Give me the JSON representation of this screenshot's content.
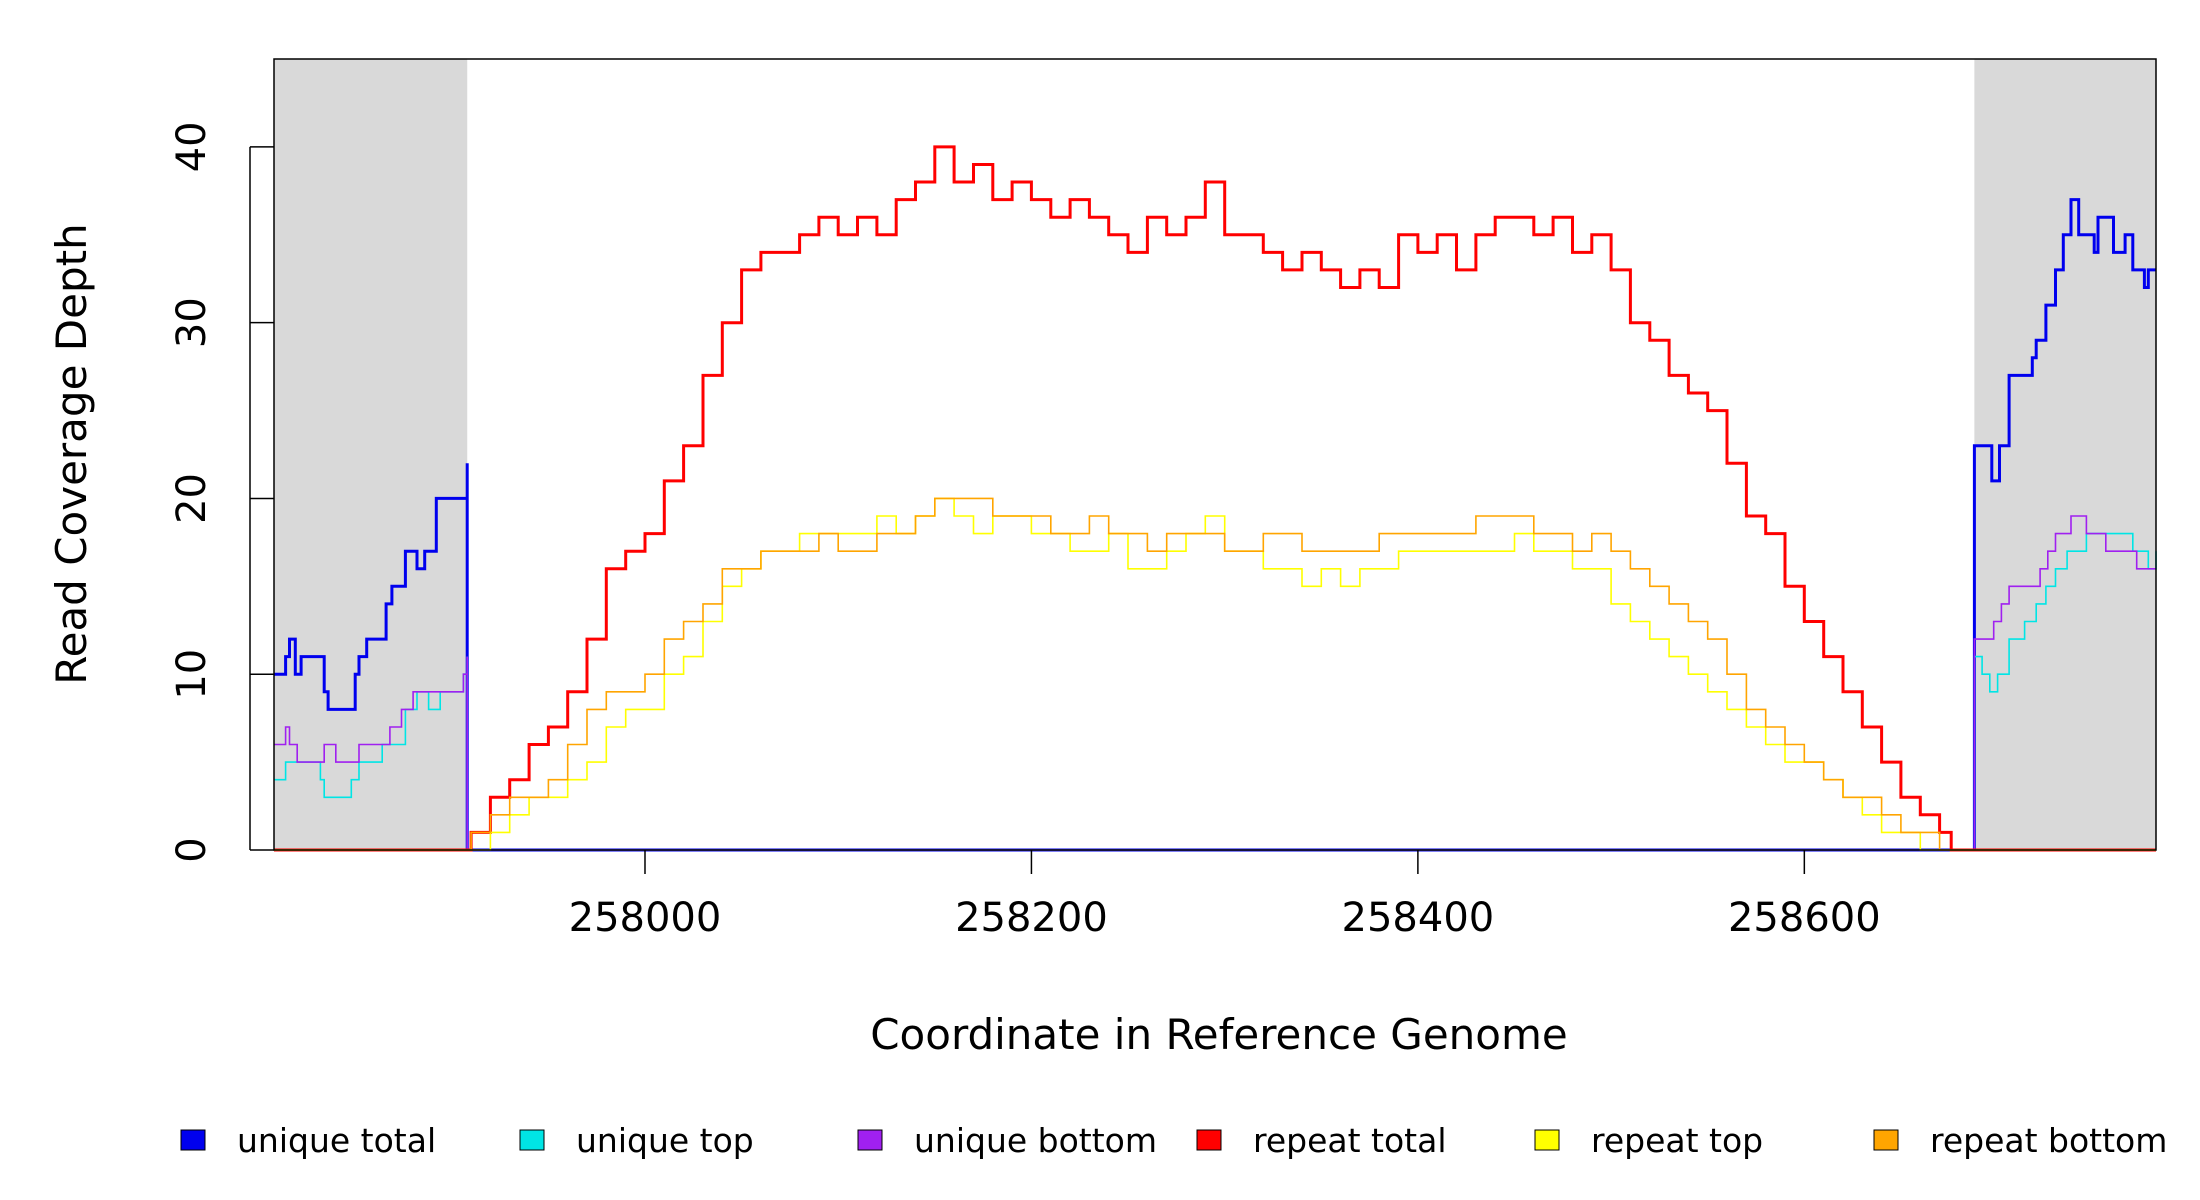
{
  "chart_data": {
    "type": "line",
    "title": "",
    "xlabel": "Coordinate in Reference Genome",
    "ylabel": "Read Coverage Depth",
    "xlim": [
      257808,
      258782
    ],
    "ylim": [
      0,
      45
    ],
    "x_ticks": [
      258000,
      258200,
      258400,
      258600
    ],
    "x_tick_labels": [
      "258000",
      "258200",
      "258400",
      "258600"
    ],
    "y_ticks": [
      0,
      10,
      20,
      30,
      40
    ],
    "y_tick_labels": [
      "0",
      "10",
      "20",
      "30",
      "40"
    ],
    "grid": false,
    "shaded_regions": [
      {
        "x0": 257808,
        "x1": 257908,
        "color": "#d9d9d9"
      },
      {
        "x0": 258688,
        "x1": 258782,
        "color": "#d9d9d9"
      }
    ],
    "legend_position": "bottom",
    "series": [
      {
        "name": "unique total",
        "color": "#0000ee",
        "width": 3,
        "x": [
          257808,
          257814,
          257816,
          257819,
          257822,
          257832,
          257834,
          257836,
          257845,
          257850,
          257852,
          257856,
          257863,
          257866,
          257869,
          257876,
          257882,
          257883,
          257886,
          257892,
          257897,
          257906,
          257908,
          257908,
          257909,
          258688,
          258688,
          258692,
          258697,
          258701,
          258706,
          258718,
          258720,
          258725,
          258730,
          258734,
          258738,
          258742,
          258746,
          258750,
          258752,
          258760,
          258766,
          258770,
          258774,
          258776,
          258778,
          258782
        ],
        "y": [
          10,
          11,
          12,
          10,
          11,
          11,
          9,
          8,
          8,
          10,
          11,
          12,
          12,
          14,
          15,
          17,
          16,
          16,
          17,
          20,
          20,
          20,
          22,
          0,
          0,
          0,
          23,
          23,
          21,
          23,
          27,
          28,
          29,
          31,
          33,
          35,
          37,
          35,
          35,
          34,
          36,
          34,
          35,
          33,
          33,
          32,
          33,
          33
        ]
      },
      {
        "name": "unique top",
        "color": "#00e5e5",
        "width": 1.6,
        "x": [
          257808,
          257814,
          257820,
          257832,
          257834,
          257845,
          257848,
          257852,
          257864,
          257876,
          257882,
          257888,
          257894,
          257906,
          257908,
          257908,
          257909,
          258688,
          258688,
          258692,
          258696,
          258700,
          258706,
          258714,
          258720,
          258725,
          258730,
          258736,
          258746,
          258756,
          258764,
          258770,
          258778,
          258782
        ],
        "y": [
          4,
          5,
          5,
          4,
          3,
          3,
          4,
          5,
          6,
          8,
          9,
          8,
          9,
          10,
          11,
          0,
          0,
          0,
          11,
          10,
          9,
          10,
          12,
          13,
          14,
          15,
          16,
          17,
          18,
          18,
          18,
          17,
          16,
          17
        ]
      },
      {
        "name": "unique bottom",
        "color": "#a020f0",
        "width": 1.6,
        "x": [
          257808,
          257814,
          257816,
          257820,
          257834,
          257840,
          257848,
          257852,
          257864,
          257868,
          257874,
          257880,
          257890,
          257906,
          257908,
          257908,
          257909,
          258688,
          258688,
          258694,
          258698,
          258702,
          258706,
          258718,
          258722,
          258726,
          258730,
          258738,
          258746,
          258756,
          258764,
          258772,
          258782
        ],
        "y": [
          6,
          7,
          6,
          5,
          6,
          5,
          5,
          6,
          6,
          7,
          8,
          9,
          9,
          10,
          11,
          0,
          0,
          0,
          12,
          12,
          13,
          14,
          15,
          15,
          16,
          17,
          18,
          19,
          18,
          17,
          17,
          16,
          16
        ]
      },
      {
        "name": "repeat total",
        "color": "#ff0000",
        "width": 3,
        "x": [
          257808,
          257908,
          257910,
          257920,
          257930,
          257940,
          257950,
          257960,
          257970,
          257980,
          257990,
          258000,
          258010,
          258020,
          258030,
          258040,
          258050,
          258060,
          258070,
          258080,
          258090,
          258100,
          258110,
          258120,
          258130,
          258140,
          258150,
          258160,
          258170,
          258180,
          258190,
          258200,
          258210,
          258220,
          258230,
          258240,
          258250,
          258260,
          258270,
          258280,
          258290,
          258300,
          258310,
          258320,
          258330,
          258340,
          258350,
          258360,
          258370,
          258380,
          258390,
          258400,
          258410,
          258420,
          258430,
          258440,
          258450,
          258460,
          258470,
          258480,
          258490,
          258500,
          258510,
          258520,
          258530,
          258540,
          258550,
          258560,
          258570,
          258580,
          258590,
          258600,
          258610,
          258620,
          258630,
          258640,
          258650,
          258660,
          258670,
          258676,
          258688,
          258782
        ],
        "y": [
          0,
          0,
          1,
          3,
          4,
          6,
          7,
          9,
          12,
          16,
          17,
          18,
          21,
          23,
          27,
          30,
          33,
          34,
          34,
          35,
          36,
          35,
          36,
          35,
          37,
          38,
          40,
          38,
          39,
          37,
          38,
          37,
          36,
          37,
          36,
          35,
          34,
          36,
          35,
          36,
          38,
          35,
          35,
          34,
          33,
          34,
          33,
          32,
          33,
          32,
          35,
          34,
          35,
          33,
          35,
          36,
          36,
          35,
          36,
          34,
          35,
          33,
          30,
          29,
          27,
          26,
          25,
          22,
          19,
          18,
          15,
          13,
          11,
          9,
          7,
          5,
          3,
          2,
          1,
          0,
          0,
          0
        ]
      },
      {
        "name": "repeat top",
        "color": "#ffff00",
        "width": 1.6,
        "x": [
          257808,
          257908,
          257910,
          257920,
          257930,
          257940,
          257950,
          257960,
          257970,
          257980,
          257990,
          258000,
          258010,
          258020,
          258030,
          258040,
          258050,
          258060,
          258070,
          258080,
          258090,
          258100,
          258110,
          258120,
          258130,
          258140,
          258150,
          258160,
          258170,
          258180,
          258190,
          258200,
          258210,
          258220,
          258230,
          258240,
          258250,
          258260,
          258270,
          258280,
          258290,
          258300,
          258310,
          258320,
          258330,
          258340,
          258350,
          258360,
          258370,
          258380,
          258390,
          258400,
          258410,
          258420,
          258430,
          258440,
          258450,
          258460,
          258470,
          258480,
          258490,
          258500,
          258510,
          258520,
          258530,
          258540,
          258550,
          258560,
          258570,
          258580,
          258590,
          258600,
          258610,
          258620,
          258630,
          258640,
          258650,
          258660,
          258670,
          258676,
          258688,
          258782
        ],
        "y": [
          0,
          0,
          0,
          1,
          2,
          3,
          3,
          4,
          5,
          7,
          8,
          8,
          10,
          11,
          13,
          15,
          16,
          17,
          17,
          18,
          18,
          18,
          18,
          19,
          18,
          19,
          20,
          19,
          18,
          19,
          19,
          18,
          18,
          17,
          17,
          18,
          16,
          16,
          17,
          18,
          19,
          17,
          17,
          16,
          16,
          15,
          16,
          15,
          16,
          16,
          17,
          17,
          17,
          17,
          17,
          17,
          18,
          17,
          17,
          16,
          16,
          14,
          13,
          12,
          11,
          10,
          9,
          8,
          7,
          6,
          5,
          5,
          4,
          3,
          2,
          1,
          1,
          0,
          0,
          0,
          0,
          0
        ]
      },
      {
        "name": "repeat bottom",
        "color": "#ffa500",
        "width": 1.6,
        "x": [
          257808,
          257908,
          257910,
          257920,
          257930,
          257940,
          257950,
          257960,
          257970,
          257980,
          257990,
          258000,
          258010,
          258020,
          258030,
          258040,
          258050,
          258060,
          258070,
          258080,
          258090,
          258100,
          258110,
          258120,
          258130,
          258140,
          258150,
          258160,
          258170,
          258180,
          258190,
          258200,
          258210,
          258220,
          258230,
          258240,
          258250,
          258260,
          258270,
          258280,
          258290,
          258300,
          258310,
          258320,
          258330,
          258340,
          258350,
          258360,
          258370,
          258380,
          258390,
          258400,
          258410,
          258420,
          258430,
          258440,
          258450,
          258460,
          258470,
          258480,
          258490,
          258500,
          258510,
          258520,
          258530,
          258540,
          258550,
          258560,
          258570,
          258580,
          258590,
          258600,
          258610,
          258620,
          258630,
          258640,
          258650,
          258660,
          258670,
          258676,
          258688,
          258782
        ],
        "y": [
          0,
          0,
          1,
          2,
          3,
          3,
          4,
          6,
          8,
          9,
          9,
          10,
          12,
          13,
          14,
          16,
          16,
          17,
          17,
          17,
          18,
          17,
          17,
          18,
          18,
          19,
          20,
          20,
          20,
          19,
          19,
          19,
          18,
          18,
          19,
          18,
          18,
          17,
          18,
          18,
          18,
          17,
          17,
          18,
          18,
          17,
          17,
          17,
          17,
          18,
          18,
          18,
          18,
          18,
          19,
          19,
          19,
          18,
          18,
          17,
          18,
          17,
          16,
          15,
          14,
          13,
          12,
          10,
          8,
          7,
          6,
          5,
          4,
          3,
          3,
          2,
          1,
          1,
          0,
          0,
          0,
          0
        ]
      }
    ]
  }
}
